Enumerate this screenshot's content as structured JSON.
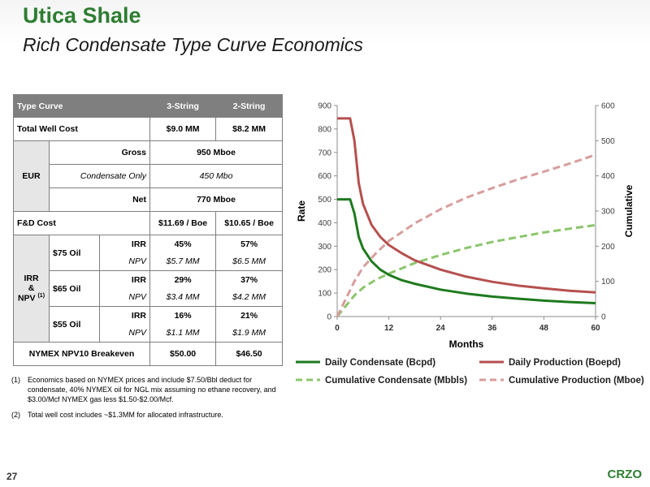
{
  "title": "Utica Shale",
  "subtitle": "Rich Condensate Type Curve Economics",
  "table": {
    "header": [
      "Type Curve",
      "3-String",
      "2-String"
    ],
    "total_well_cost": {
      "label": "Total Well Cost",
      "v3": "$9.0 MM",
      "v2": "$8.2 MM"
    },
    "eur": {
      "label": "EUR",
      "gross": {
        "label": "Gross",
        "value": "950 Mboe"
      },
      "condensate": {
        "label": "Condensate Only",
        "value": "450 Mbo"
      },
      "net": {
        "label": "Net",
        "value": "770 Mboe"
      }
    },
    "fd_cost": {
      "label": "F&D Cost",
      "v3": "$11.69 / Boe",
      "v2": "$10.65 / Boe"
    },
    "irr_npv": {
      "label_irr": "IRR",
      "label_amp": "&",
      "label_npv": "NPV",
      "label_sup": "(1)",
      "cases": [
        {
          "oil": "$75 Oil",
          "irr_label": "IRR",
          "irr3": "45%",
          "irr2": "57%",
          "npv_label": "NPV",
          "npv3": "$5.7 MM",
          "npv2": "$6.5 MM"
        },
        {
          "oil": "$65 Oil",
          "irr_label": "IRR",
          "irr3": "29%",
          "irr2": "37%",
          "npv_label": "NPV",
          "npv3": "$3.4 MM",
          "npv2": "$4.2 MM"
        },
        {
          "oil": "$55 Oil",
          "irr_label": "IRR",
          "irr3": "16%",
          "irr2": "21%",
          "npv_label": "NPV",
          "npv3": "$1.1 MM",
          "npv2": "$1.9 MM"
        }
      ]
    },
    "breakeven": {
      "label": "NYMEX NPV10 Breakeven",
      "v3": "$50.00",
      "v2": "$46.50"
    }
  },
  "notes": [
    {
      "num": "(1)",
      "text": "Economics based on NYMEX prices and include $7.50/Bbl deduct for condensate, 40% NYMEX oil for NGL mix assuming no ethane recovery, and $3.00/Mcf NYMEX gas less $1.50-$2.00/Mcf."
    },
    {
      "num": "(2)",
      "text": "Total well cost includes ~$1.3MM for allocated infrastructure."
    }
  ],
  "page_number": "27",
  "logo": "CRZO",
  "chart_data": {
    "type": "line",
    "xlabel": "Months",
    "ylabel": "Rate",
    "y2label": "Cumulative",
    "xlim": [
      0,
      60
    ],
    "ylim": [
      0,
      900
    ],
    "y2lim": [
      0,
      600
    ],
    "xticks": [
      "0",
      "12",
      "24",
      "36",
      "48",
      "60"
    ],
    "yticks": [
      "0",
      "100",
      "200",
      "300",
      "400",
      "500",
      "600",
      "700",
      "800",
      "900"
    ],
    "y2ticks": [
      "0",
      "100",
      "200",
      "300",
      "400",
      "500",
      "600"
    ],
    "grid": false,
    "legend_position": "bottom",
    "series": [
      {
        "name": "Daily Condensate (Bcpd)",
        "axis": "left",
        "style": "solid",
        "color": "#1e7a1e",
        "x": [
          0,
          3,
          4,
          5,
          6,
          8,
          10,
          12,
          15,
          18,
          24,
          30,
          36,
          42,
          48,
          54,
          60
        ],
        "y": [
          500,
          500,
          440,
          340,
          290,
          235,
          200,
          178,
          155,
          140,
          115,
          98,
          85,
          76,
          68,
          62,
          57
        ]
      },
      {
        "name": "Daily Production (Boepd)",
        "axis": "left",
        "style": "solid",
        "color": "#b5504e",
        "x": [
          0,
          3,
          4,
          5,
          6,
          8,
          10,
          12,
          15,
          18,
          24,
          30,
          36,
          42,
          48,
          54,
          60
        ],
        "y": [
          845,
          845,
          750,
          570,
          480,
          390,
          340,
          305,
          270,
          240,
          200,
          170,
          148,
          132,
          120,
          110,
          103
        ]
      },
      {
        "name": "Cumulative Condensate (Mbbls)",
        "axis": "right",
        "style": "dashed",
        "color": "#8cc56d",
        "x": [
          0,
          2,
          4,
          6,
          9,
          12,
          18,
          24,
          30,
          36,
          42,
          48,
          54,
          60
        ],
        "y": [
          0,
          30,
          60,
          82,
          105,
          122,
          152,
          175,
          195,
          212,
          226,
          239,
          250,
          260
        ]
      },
      {
        "name": "Cumulative Production (Mboe)",
        "axis": "right",
        "style": "dashed",
        "color": "#d69e9c",
        "x": [
          0,
          2,
          4,
          6,
          9,
          12,
          18,
          24,
          30,
          36,
          42,
          48,
          54,
          60
        ],
        "y": [
          0,
          50,
          100,
          140,
          180,
          215,
          265,
          305,
          338,
          365,
          390,
          412,
          435,
          460
        ]
      }
    ]
  }
}
